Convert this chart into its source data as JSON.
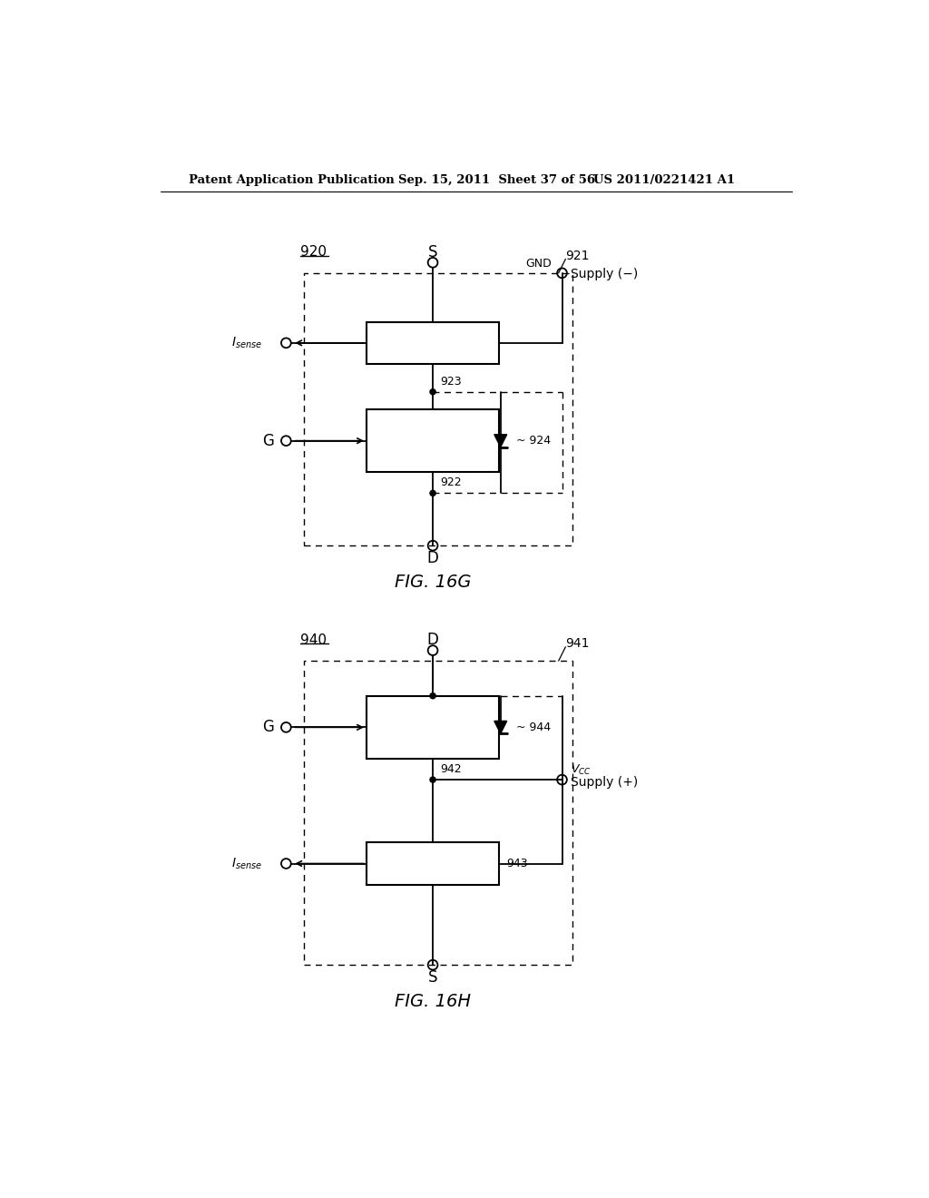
{
  "header_left": "Patent Application Publication",
  "header_mid": "Sep. 15, 2011  Sheet 37 of 56",
  "header_right": "US 2011/0221421 A1",
  "fig1_label": "920",
  "fig1_sub_label": "921",
  "fig1_caption": "FIG. 16G",
  "fig1_box1_label": "923",
  "fig1_box2_label": "922",
  "fig1_diode_label": "924",
  "fig1_terminal_top": "S",
  "fig1_terminal_bot": "D",
  "fig1_gnd_label": "GND",
  "fig1_supply_label": "Supply (−)",
  "fig2_label": "940",
  "fig2_sub_label": "941",
  "fig2_caption": "FIG. 16H",
  "fig2_box1_label": "942",
  "fig2_box2_label": "943",
  "fig2_diode_label": "944",
  "fig2_terminal_top": "D",
  "fig2_terminal_bot": "S",
  "fig2_supply_label": "Supply (+)",
  "bg_color": "#ffffff",
  "line_color": "#000000",
  "text_color": "#000000"
}
